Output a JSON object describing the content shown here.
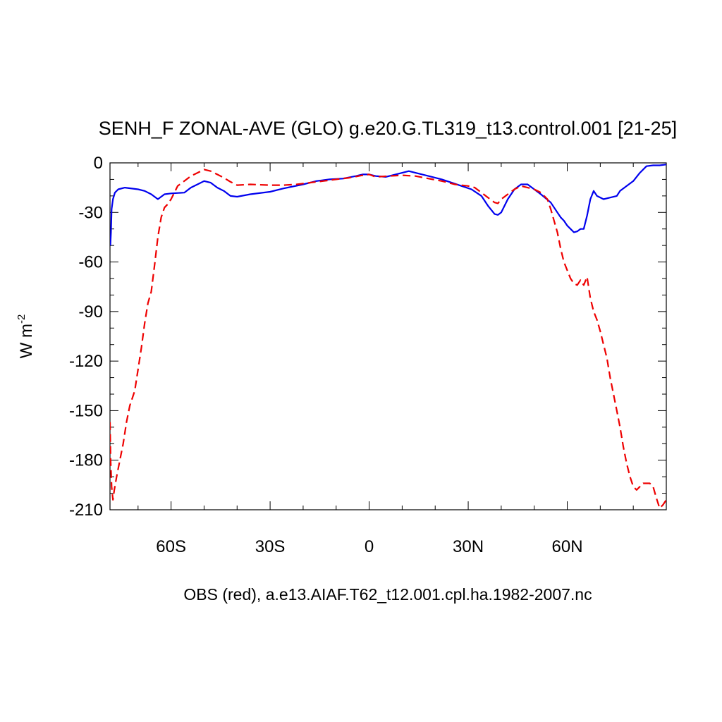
{
  "chart_data": {
    "type": "line",
    "title": "SENH_F ZONAL-AVE (GLO) g.e20.G.TL319_t13.control.001 [21-25]",
    "ylabel_base": "W m",
    "ylabel_exp": "-2",
    "caption": "OBS (red), a.e13.AIAF.T62_t12.001.cpl.ha.1982-2007.nc",
    "xlim": [
      -78.5,
      90
    ],
    "ylim": [
      -210,
      0
    ],
    "x_ticks": [
      {
        "value": -60,
        "label": "60S"
      },
      {
        "value": -30,
        "label": "30S"
      },
      {
        "value": 0,
        "label": "0"
      },
      {
        "value": 30,
        "label": "30N"
      },
      {
        "value": 60,
        "label": "60N"
      }
    ],
    "y_ticks": [
      {
        "value": 0,
        "label": "0"
      },
      {
        "value": -30,
        "label": "-30"
      },
      {
        "value": -60,
        "label": "-60"
      },
      {
        "value": -90,
        "label": "-90"
      },
      {
        "value": -120,
        "label": "-120"
      },
      {
        "value": -150,
        "label": "-150"
      },
      {
        "value": -180,
        "label": "-180"
      },
      {
        "value": -210,
        "label": "-210"
      }
    ],
    "grid": false,
    "series": [
      {
        "color": "#0000ee",
        "dash": "solid",
        "points": [
          [
            -78.4,
            -50
          ],
          [
            -78.2,
            -42
          ],
          [
            -78,
            -28
          ],
          [
            -77.6,
            -22
          ],
          [
            -77,
            -18
          ],
          [
            -76,
            -16
          ],
          [
            -74,
            -15
          ],
          [
            -70,
            -16
          ],
          [
            -68,
            -17
          ],
          [
            -66,
            -19
          ],
          [
            -64,
            -22
          ],
          [
            -62,
            -19
          ],
          [
            -60,
            -18.5
          ],
          [
            -56,
            -18
          ],
          [
            -54,
            -15
          ],
          [
            -52,
            -13
          ],
          [
            -50,
            -11
          ],
          [
            -48,
            -12
          ],
          [
            -46,
            -15
          ],
          [
            -44,
            -17
          ],
          [
            -42,
            -20
          ],
          [
            -40,
            -20.5
          ],
          [
            -36,
            -19
          ],
          [
            -30,
            -17.5
          ],
          [
            -26,
            -15.5
          ],
          [
            -20,
            -13
          ],
          [
            -16,
            -11
          ],
          [
            -12,
            -10
          ],
          [
            -8,
            -9.5
          ],
          [
            -4,
            -8
          ],
          [
            -2,
            -7
          ],
          [
            0,
            -7
          ],
          [
            2,
            -8
          ],
          [
            5,
            -8.5
          ],
          [
            8,
            -7
          ],
          [
            12,
            -5
          ],
          [
            15,
            -6.5
          ],
          [
            18,
            -8
          ],
          [
            22,
            -10
          ],
          [
            25,
            -12
          ],
          [
            28,
            -14
          ],
          [
            31,
            -16
          ],
          [
            34,
            -20
          ],
          [
            36,
            -26
          ],
          [
            38,
            -31
          ],
          [
            39,
            -31.5
          ],
          [
            40,
            -30
          ],
          [
            42,
            -22
          ],
          [
            44,
            -16
          ],
          [
            46,
            -13
          ],
          [
            48,
            -13
          ],
          [
            50,
            -16
          ],
          [
            52,
            -19
          ],
          [
            55,
            -24
          ],
          [
            57,
            -30
          ],
          [
            58,
            -33
          ],
          [
            59,
            -35
          ],
          [
            60,
            -38
          ],
          [
            61,
            -40
          ],
          [
            62,
            -42
          ],
          [
            63,
            -41.5
          ],
          [
            64,
            -40
          ],
          [
            65,
            -40
          ],
          [
            66,
            -32
          ],
          [
            67,
            -22
          ],
          [
            68,
            -17
          ],
          [
            69,
            -20
          ],
          [
            71,
            -22
          ],
          [
            73,
            -21
          ],
          [
            75,
            -20
          ],
          [
            76,
            -17
          ],
          [
            78,
            -14
          ],
          [
            80,
            -11
          ],
          [
            82,
            -6
          ],
          [
            84,
            -2
          ],
          [
            86,
            -1.5
          ],
          [
            88,
            -1.5
          ],
          [
            90,
            -1
          ]
        ]
      },
      {
        "color": "#ee0000",
        "dash": "dashed",
        "points": [
          [
            -78.5,
            -157
          ],
          [
            -78.3,
            -180
          ],
          [
            -78,
            -196
          ],
          [
            -77.6,
            -204
          ],
          [
            -77.2,
            -198
          ],
          [
            -76.5,
            -190
          ],
          [
            -75.5,
            -180
          ],
          [
            -74.5,
            -170
          ],
          [
            -73.5,
            -157
          ],
          [
            -72.5,
            -147
          ],
          [
            -71,
            -138
          ],
          [
            -70,
            -125
          ],
          [
            -69,
            -112
          ],
          [
            -68,
            -97
          ],
          [
            -67,
            -85
          ],
          [
            -66,
            -78
          ],
          [
            -65,
            -62
          ],
          [
            -64,
            -45
          ],
          [
            -63,
            -33
          ],
          [
            -62,
            -27
          ],
          [
            -61,
            -25
          ],
          [
            -60,
            -22
          ],
          [
            -59,
            -18
          ],
          [
            -58,
            -14
          ],
          [
            -56,
            -11
          ],
          [
            -54,
            -8
          ],
          [
            -52,
            -6
          ],
          [
            -50,
            -4
          ],
          [
            -48,
            -5
          ],
          [
            -46,
            -7
          ],
          [
            -44,
            -9
          ],
          [
            -42,
            -11.5
          ],
          [
            -40,
            -13.5
          ],
          [
            -36,
            -13
          ],
          [
            -30,
            -13.5
          ],
          [
            -26,
            -13.5
          ],
          [
            -22,
            -13
          ],
          [
            -18,
            -12
          ],
          [
            -14,
            -11
          ],
          [
            -10,
            -10
          ],
          [
            -6,
            -9
          ],
          [
            -2,
            -7.5
          ],
          [
            0,
            -7
          ],
          [
            2,
            -8.5
          ],
          [
            6,
            -8
          ],
          [
            10,
            -7.5
          ],
          [
            14,
            -8
          ],
          [
            18,
            -9.5
          ],
          [
            22,
            -11
          ],
          [
            26,
            -13
          ],
          [
            30,
            -14
          ],
          [
            32,
            -15
          ],
          [
            34,
            -18
          ],
          [
            36,
            -21
          ],
          [
            38,
            -24
          ],
          [
            39,
            -24.5
          ],
          [
            40,
            -22
          ],
          [
            42,
            -19
          ],
          [
            44,
            -16
          ],
          [
            46,
            -14
          ],
          [
            48,
            -15
          ],
          [
            50,
            -16
          ],
          [
            52,
            -18
          ],
          [
            54,
            -22
          ],
          [
            55,
            -28
          ],
          [
            56,
            -35
          ],
          [
            57,
            -42
          ],
          [
            58,
            -52
          ],
          [
            59,
            -60
          ],
          [
            60,
            -65
          ],
          [
            61,
            -70
          ],
          [
            62,
            -73
          ],
          [
            63,
            -74
          ],
          [
            64,
            -71
          ],
          [
            65,
            -74
          ],
          [
            66,
            -69
          ],
          [
            67,
            -82
          ],
          [
            68,
            -90
          ],
          [
            69,
            -95
          ],
          [
            70,
            -102
          ],
          [
            71,
            -110
          ],
          [
            72,
            -118
          ],
          [
            73,
            -130
          ],
          [
            74,
            -140
          ],
          [
            75,
            -150
          ],
          [
            76,
            -160
          ],
          [
            77,
            -172
          ],
          [
            78,
            -182
          ],
          [
            79,
            -190
          ],
          [
            80,
            -196
          ],
          [
            81,
            -198
          ],
          [
            82,
            -196
          ],
          [
            83,
            -194
          ],
          [
            85,
            -194
          ],
          [
            86,
            -196
          ],
          [
            87,
            -203
          ],
          [
            88,
            -209
          ],
          [
            89,
            -207
          ],
          [
            90,
            -204
          ]
        ]
      }
    ]
  }
}
